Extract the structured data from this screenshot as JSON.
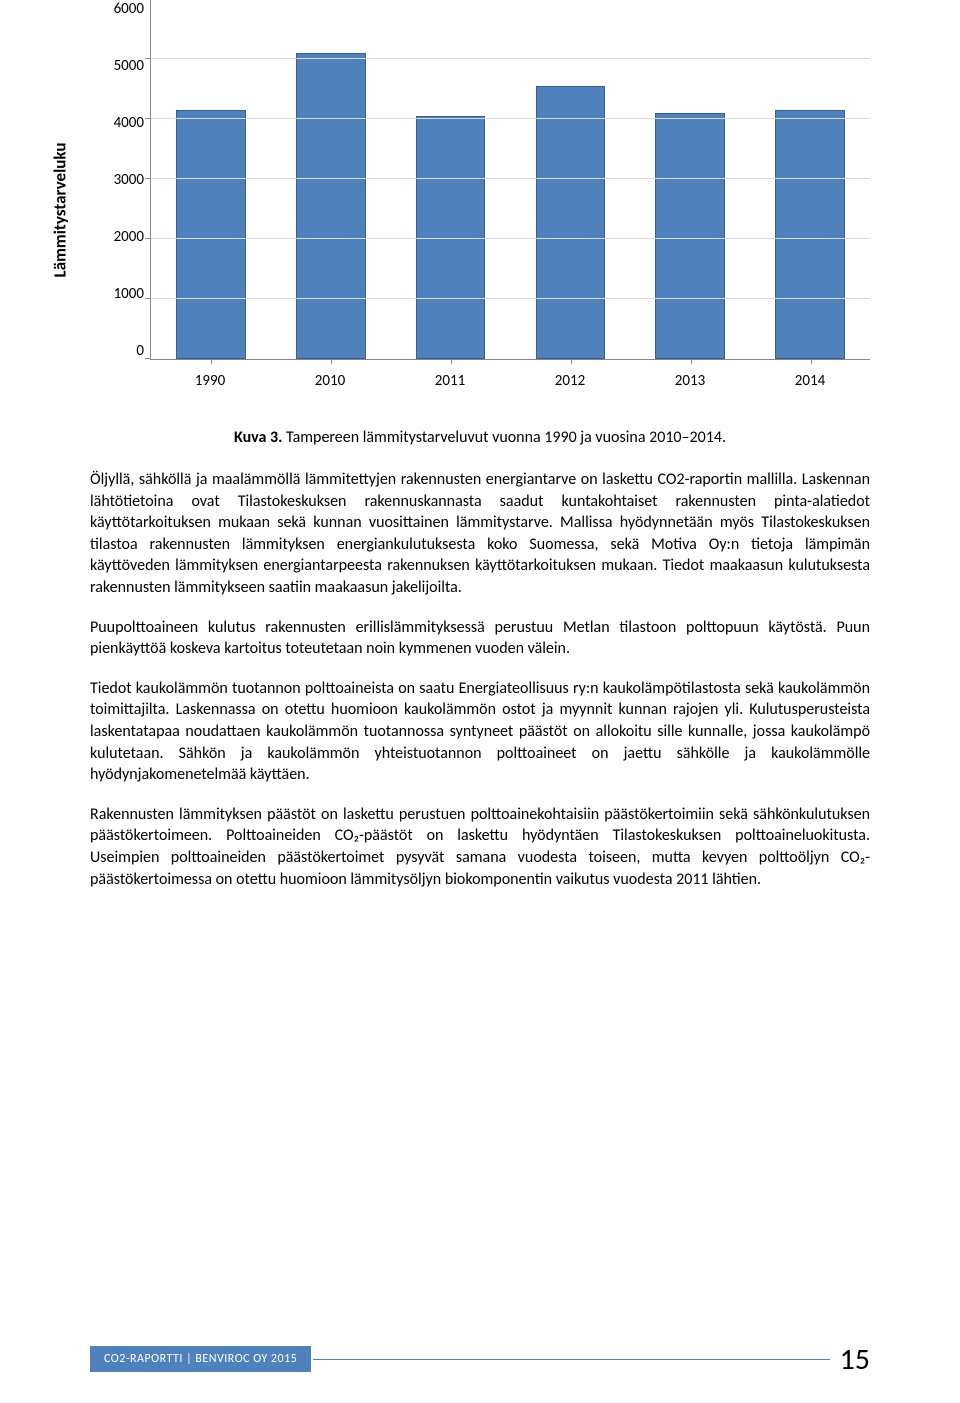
{
  "chart": {
    "type": "bar",
    "ylabel": "Lämmitystarveluku",
    "ylabel_fontsize": 17,
    "ylim": [
      0,
      6000
    ],
    "ytick_step": 1000,
    "yticks": [
      "6000",
      "5000",
      "4000",
      "3000",
      "2000",
      "1000",
      "0"
    ],
    "categories": [
      "1990",
      "2010",
      "2011",
      "2012",
      "2013",
      "2014"
    ],
    "values": [
      4150,
      5100,
      4050,
      4550,
      4100,
      4150
    ],
    "bar_color": "#4f81bd",
    "bar_border_color": "#3a5f8a",
    "grid_color": "#d9d9d9",
    "axis_color": "#888888",
    "background_color": "#ffffff",
    "bar_width_ratio": 0.58,
    "tick_fontsize": 15
  },
  "caption": {
    "prefix": "Kuva 3.",
    "text": " Tampereen lämmitystarveluvut vuonna 1990 ja vuosina 2010–2014."
  },
  "paragraphs": {
    "p1": "Öljyllä, sähköllä ja maalämmöllä lämmitettyjen rakennusten energiantarve on laskettu CO2-raportin mallilla. Laskennan lähtötietoina ovat Tilastokeskuksen rakennuskannasta saadut kuntakohtaiset rakennusten pinta-alatiedot käyttötarkoituksen mukaan sekä kunnan vuosittainen lämmitystarve. Mallissa hyödynnetään myös Tilastokeskuksen tilastoa rakennusten lämmityksen energiankulutuksesta koko Suomessa, sekä Motiva Oy:n tietoja lämpimän käyttöveden lämmityksen energiantarpeesta rakennuksen käyttötarkoituksen mukaan. Tiedot maakaasun kulutuksesta rakennusten lämmitykseen saatiin maakaasun jakelijoilta.",
    "p2": "Puupolttoaineen kulutus rakennusten erillislämmityksessä perustuu Metlan tilastoon polttopuun käytöstä. Puun pienkäyttöä koskeva kartoitus toteutetaan noin kymmenen vuoden välein.",
    "p3": "Tiedot kaukolämmön tuotannon polttoaineista on saatu Energiateollisuus ry:n kaukolämpötilastosta sekä kaukolämmön toimittajilta. Laskennassa on otettu huomioon kaukolämmön ostot ja myynnit kunnan rajojen yli. Kulutusperusteista laskentatapaa noudattaen kaukolämmön tuotannossa syntyneet päästöt on allokoitu sille kunnalle, jossa kaukolämpö kulutetaan. Sähkön ja kaukolämmön yhteistuotannon polttoaineet on jaettu sähkölle ja kaukolämmölle hyödynjakomenetelmää käyttäen.",
    "p4": "Rakennusten lämmityksen päästöt on laskettu perustuen polttoainekohtaisiin päästökertoimiin sekä sähkönkulutuksen päästökertoimeen. Polttoaineiden CO₂-päästöt on laskettu hyödyntäen Tilastokeskuksen polttoaineluokitusta. Useimpien polttoaineiden päästökertoimet pysyvät samana vuodesta toiseen, mutta kevyen polttoöljyn CO₂-päästökertoimessa on otettu huomioon lämmitysöljyn biokomponentin vaikutus vuodesta 2011 lähtien."
  },
  "footer": {
    "label": "CO2-RAPORTTI | BENVIROC OY 2015",
    "page_number": "15",
    "bar_color": "#4f81bd"
  }
}
